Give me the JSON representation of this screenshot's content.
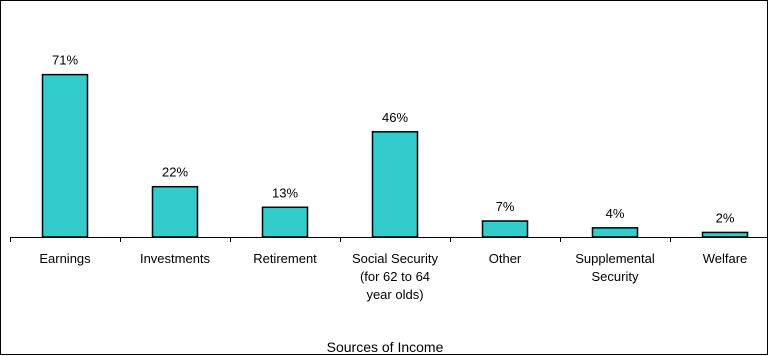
{
  "chart_data": {
    "type": "bar",
    "categories": [
      [
        "Earnings"
      ],
      [
        "Investments"
      ],
      [
        "Retirement"
      ],
      [
        "Social Security",
        "(for 62 to 64",
        "year olds)"
      ],
      [
        "Other"
      ],
      [
        "Supplemental",
        "Security"
      ],
      [
        "Welfare"
      ]
    ],
    "values": [
      71,
      22,
      13,
      46,
      7,
      4,
      2
    ],
    "data_labels": [
      "71%",
      "22%",
      "13%",
      "46%",
      "7%",
      "4%",
      "2%"
    ],
    "title": "",
    "xlabel": "Sources of Income",
    "ylabel": "",
    "ylim": [
      0,
      100
    ],
    "grid": false,
    "legend": "none",
    "bar_color": "#33CCCC",
    "bar_edge_color": "#000000"
  }
}
